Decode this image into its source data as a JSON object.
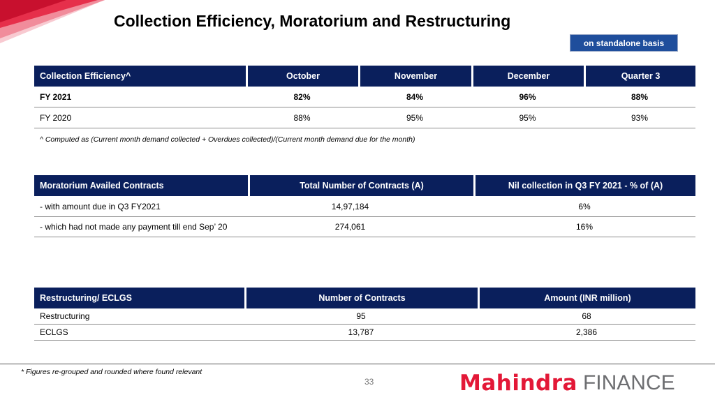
{
  "title": "Collection Efficiency, Moratorium and Restructuring",
  "badge": "on standalone basis",
  "collection": {
    "headers": [
      "Collection Efficiency^",
      "October",
      "November",
      "December",
      "Quarter 3"
    ],
    "rows": [
      {
        "label": "FY 2021",
        "values": [
          "82%",
          "84%",
          "96%",
          "88%"
        ]
      },
      {
        "label": "FY 2020",
        "values": [
          "88%",
          "95%",
          "95%",
          "93%"
        ]
      }
    ],
    "note": "^ Computed as (Current month demand collected + Overdues collected)/(Current month demand due for the month)"
  },
  "moratorium": {
    "headers": [
      "Moratorium Availed Contracts",
      "Total Number of Contracts (A)",
      "Nil collection in Q3 FY 2021 - % of (A)"
    ],
    "rows": [
      {
        "label": "- with amount due in Q3 FY2021",
        "values": [
          "14,97,184",
          "6%"
        ]
      },
      {
        "label": "- which had not made any payment till end Sep’ 20",
        "values": [
          "274,061",
          "16%"
        ]
      }
    ]
  },
  "restructuring": {
    "headers": [
      "Restructuring/ ECLGS",
      "Number of Contracts",
      "Amount (INR million)"
    ],
    "rows": [
      {
        "label": "Restructuring",
        "values": [
          "95",
          "68"
        ]
      },
      {
        "label": "ECLGS",
        "values": [
          "13,787",
          "2,386"
        ]
      }
    ]
  },
  "footnote": "* Figures re-grouped and rounded where found relevant",
  "page_number": "33",
  "logo": {
    "brand": "Mahindra",
    "suffix": "FINANCE"
  },
  "colors": {
    "header_bg": "#0a1f5c",
    "badge_bg": "#1f4e9c",
    "brand_red": "#e31837",
    "brand_grey": "#6d6e71"
  }
}
